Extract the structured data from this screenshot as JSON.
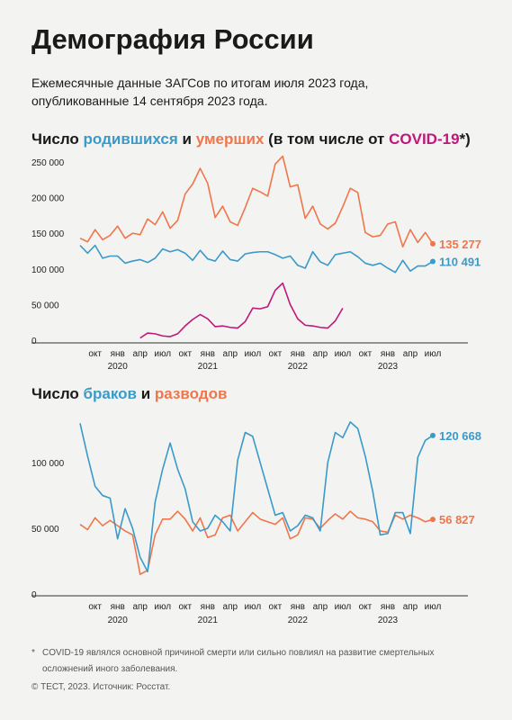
{
  "header": {
    "title": "Демография России",
    "subtitle": [
      "Ежемесячные данные ЗАГСов по итогам июля 2023 года,",
      "опубликованные 14 сентября 2023 года."
    ]
  },
  "chart_data": [
    {
      "type": "line",
      "title_parts": [
        {
          "text": "Число "
        },
        {
          "text": "родившихся",
          "color": "#3a9ac9"
        },
        {
          "text": " и "
        },
        {
          "text": "умерших",
          "color": "#f0764a"
        },
        {
          "text": " (в том числе от "
        },
        {
          "text": "COVID-19",
          "color": "#c0177a"
        },
        {
          "text": "*)"
        }
      ],
      "categories": [
        null,
        null,
        "окт",
        null,
        null,
        "янв",
        null,
        null,
        "апр",
        null,
        null,
        "июл",
        null,
        null,
        "окт",
        null,
        null,
        "янв",
        null,
        null,
        "апр",
        null,
        null,
        "июл",
        null,
        null,
        "окт",
        null,
        null,
        "янв",
        null,
        null,
        "апр",
        null,
        null,
        "июл",
        null,
        null,
        "окт",
        null,
        null,
        "янв",
        null,
        null,
        "апр",
        null,
        null,
        "июл"
      ],
      "year_labels": [
        null,
        null,
        null,
        null,
        null,
        "2020",
        null,
        null,
        null,
        null,
        null,
        null,
        null,
        null,
        null,
        null,
        null,
        "2021",
        null,
        null,
        null,
        null,
        null,
        null,
        null,
        null,
        null,
        null,
        null,
        "2022",
        null,
        null,
        null,
        null,
        null,
        null,
        null,
        null,
        null,
        null,
        null,
        "2023",
        null,
        null,
        null,
        null,
        null,
        null
      ],
      "ylim": [
        0,
        260000
      ],
      "yticks": [
        0,
        {
          "value": 50000,
          "label": "50 000"
        },
        {
          "value": 100000,
          "label": "100 000"
        },
        {
          "value": 150000,
          "label": "150 000"
        },
        {
          "value": 200000,
          "label": "200 000"
        },
        {
          "value": 250000,
          "label": "250 000"
        }
      ],
      "series": [
        {
          "name": "умерших",
          "color": "#f0764a",
          "values": [
            143000,
            138000,
            155000,
            141000,
            147000,
            160000,
            143000,
            150000,
            148000,
            170000,
            162000,
            180000,
            157000,
            168000,
            205000,
            219000,
            241000,
            220000,
            172000,
            188000,
            166000,
            161000,
            186000,
            213000,
            208000,
            202000,
            247000,
            258000,
            215000,
            218000,
            171000,
            188000,
            163000,
            156000,
            164000,
            187000,
            213000,
            207000,
            151000,
            145000,
            147000,
            163000,
            166000,
            131000,
            155000,
            137000,
            151000,
            135277
          ],
          "value_labels": [
            null,
            null,
            null,
            null,
            null,
            null,
            null,
            null,
            null,
            null,
            null,
            null,
            null,
            null,
            null,
            null,
            null,
            null,
            null,
            null,
            null,
            null,
            null,
            null,
            null,
            null,
            null,
            null,
            null,
            null,
            null,
            null,
            null,
            null,
            null,
            null,
            null,
            null,
            null,
            null,
            null,
            null,
            null,
            null,
            null,
            null,
            null,
            "135 277"
          ]
        },
        {
          "name": "родившихся",
          "color": "#3a9ac9",
          "values": [
            133000,
            122000,
            133000,
            115000,
            118000,
            118000,
            108000,
            111000,
            113000,
            109000,
            115000,
            128000,
            124000,
            127000,
            122000,
            112000,
            126000,
            114000,
            111000,
            125000,
            113000,
            111000,
            121000,
            123000,
            124000,
            124000,
            120000,
            115000,
            118000,
            105000,
            101000,
            124000,
            110000,
            105000,
            120000,
            122000,
            124000,
            117000,
            108000,
            105000,
            108000,
            101000,
            95000,
            112000,
            97000,
            104000,
            104000,
            110491
          ],
          "value_labels": [
            null,
            null,
            null,
            null,
            null,
            null,
            null,
            null,
            null,
            null,
            null,
            null,
            null,
            null,
            null,
            null,
            null,
            null,
            null,
            null,
            null,
            null,
            null,
            null,
            null,
            null,
            null,
            null,
            null,
            null,
            null,
            null,
            null,
            null,
            null,
            null,
            null,
            null,
            null,
            null,
            null,
            null,
            null,
            null,
            null,
            null,
            null,
            "110 491"
          ]
        },
        {
          "name": "COVID-19",
          "color": "#c0177a",
          "values": [
            null,
            null,
            null,
            null,
            null,
            null,
            null,
            null,
            3000,
            10000,
            9000,
            6000,
            5000,
            9000,
            20000,
            29000,
            36000,
            30000,
            19000,
            20000,
            18000,
            17000,
            26000,
            45000,
            44000,
            47000,
            70000,
            80000,
            50000,
            30000,
            21000,
            20000,
            18000,
            17000,
            27000,
            45000,
            null,
            null,
            null,
            null,
            null,
            null,
            null,
            null,
            null,
            null,
            null,
            null
          ]
        }
      ]
    },
    {
      "type": "line",
      "title_parts": [
        {
          "text": "Число "
        },
        {
          "text": "браков",
          "color": "#3a9ac9"
        },
        {
          "text": " и "
        },
        {
          "text": "разводов",
          "color": "#f0764a"
        }
      ],
      "categories": [
        null,
        null,
        "окт",
        null,
        null,
        "янв",
        null,
        null,
        "апр",
        null,
        null,
        "июл",
        null,
        null,
        "окт",
        null,
        null,
        "янв",
        null,
        null,
        "апр",
        null,
        null,
        "июл",
        null,
        null,
        "окт",
        null,
        null,
        "янв",
        null,
        null,
        "апр",
        null,
        null,
        "июл",
        null,
        null,
        "окт",
        null,
        null,
        "янв",
        null,
        null,
        "апр",
        null,
        null,
        "июл"
      ],
      "year_labels": [
        null,
        null,
        null,
        null,
        null,
        "2020",
        null,
        null,
        null,
        null,
        null,
        null,
        null,
        null,
        null,
        null,
        null,
        "2021",
        null,
        null,
        null,
        null,
        null,
        null,
        null,
        null,
        null,
        null,
        null,
        "2022",
        null,
        null,
        null,
        null,
        null,
        null,
        null,
        null,
        null,
        null,
        null,
        "2023",
        null,
        null,
        null,
        null,
        null,
        null
      ],
      "ylim": [
        0,
        135000
      ],
      "yticks": [
        0,
        {
          "value": 50000,
          "label": "50 000"
        },
        {
          "value": 100000,
          "label": "100 000"
        }
      ],
      "series": [
        {
          "name": "разводов",
          "color": "#f0764a",
          "values": [
            53000,
            49000,
            58000,
            52000,
            56000,
            52000,
            48000,
            45000,
            15000,
            18000,
            45000,
            57000,
            57000,
            63000,
            57000,
            48000,
            58000,
            43000,
            45000,
            58000,
            60000,
            48000,
            55000,
            62000,
            57000,
            55000,
            53000,
            58000,
            42000,
            45000,
            58000,
            57000,
            50000,
            56000,
            61000,
            57000,
            63000,
            58000,
            57000,
            55000,
            48000,
            47000,
            60000,
            57000,
            60000,
            58000,
            55000,
            56827
          ],
          "value_labels": [
            null,
            null,
            null,
            null,
            null,
            null,
            null,
            null,
            null,
            null,
            null,
            null,
            null,
            null,
            null,
            null,
            null,
            null,
            null,
            null,
            null,
            null,
            null,
            null,
            null,
            null,
            null,
            null,
            null,
            null,
            null,
            null,
            null,
            null,
            null,
            null,
            null,
            null,
            null,
            null,
            null,
            null,
            null,
            null,
            null,
            null,
            null,
            "56 827"
          ]
        },
        {
          "name": "браков",
          "color": "#3a9ac9",
          "values": [
            130000,
            105000,
            82000,
            75000,
            73000,
            42000,
            65000,
            50000,
            28000,
            17000,
            70000,
            95000,
            115000,
            95000,
            80000,
            55000,
            48000,
            50000,
            60000,
            55000,
            48000,
            102000,
            123000,
            120000,
            100000,
            80000,
            60000,
            62000,
            48000,
            52000,
            60000,
            58000,
            48000,
            100000,
            123000,
            119000,
            131000,
            126000,
            105000,
            78000,
            45000,
            46000,
            62000,
            62000,
            46000,
            104000,
            117000,
            120668
          ],
          "value_labels": [
            null,
            null,
            null,
            null,
            null,
            null,
            null,
            null,
            null,
            null,
            null,
            null,
            null,
            null,
            null,
            null,
            null,
            null,
            null,
            null,
            null,
            null,
            null,
            null,
            null,
            null,
            null,
            null,
            null,
            null,
            null,
            null,
            null,
            null,
            null,
            null,
            null,
            null,
            null,
            null,
            null,
            null,
            null,
            null,
            null,
            null,
            null,
            "120 668"
          ]
        }
      ]
    }
  ],
  "footnote": {
    "marker": "*",
    "lines": [
      "COVID-19 являлся основной причиной смерти или сильно повлиял на развитие смертельных",
      "осложнений иного заболевания."
    ]
  },
  "source": "© ТЕСТ, 2023. Источник: Росстат."
}
